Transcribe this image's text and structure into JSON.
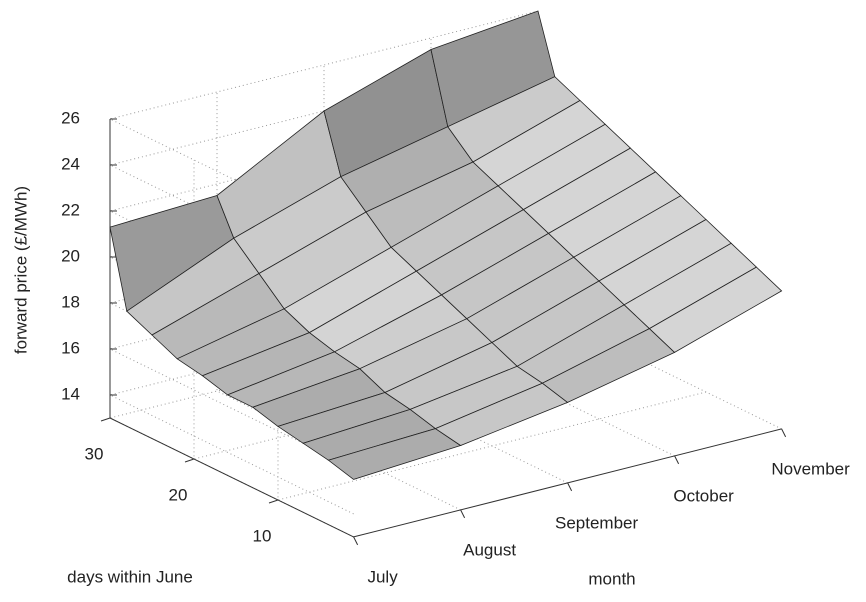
{
  "chart_data": {
    "type": "surface",
    "zlabel": "forward price (£/MWh)",
    "ylabel": "days within June",
    "xlabel": "month",
    "categories": [
      "July",
      "August",
      "September",
      "October",
      "November"
    ],
    "y": [
      1,
      4,
      7,
      10,
      13,
      16,
      19,
      22,
      25,
      28,
      30
    ],
    "ylim": [
      1,
      30
    ],
    "yticks": [
      10,
      20,
      30
    ],
    "zlim": [
      13,
      26
    ],
    "zticks": [
      14,
      16,
      18,
      20,
      22,
      24,
      26
    ],
    "grid": true,
    "z": [
      [
        15.5,
        15.8,
        16.5,
        17.5,
        19
      ],
      [
        15.8,
        16,
        16.8,
        18,
        19.5
      ],
      [
        16,
        16.3,
        17,
        18.5,
        20
      ],
      [
        16.2,
        16.5,
        17.5,
        19,
        20.5
      ],
      [
        16.5,
        17,
        18,
        19.5,
        21
      ],
      [
        16.5,
        17.2,
        18.5,
        20,
        21.5
      ],
      [
        16.8,
        17.5,
        19,
        20.5,
        22
      ],
      [
        17,
        18,
        19.5,
        21,
        22.5
      ],
      [
        17.5,
        19,
        20.5,
        21.5,
        23
      ],
      [
        18,
        20,
        21.5,
        22.5,
        23.5
      ],
      [
        21.3,
        21.5,
        24,
        25.5,
        26
      ]
    ]
  }
}
